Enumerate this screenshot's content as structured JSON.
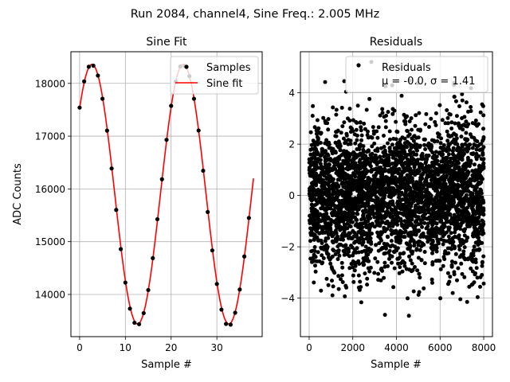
{
  "figure": {
    "suptitle": "Run 2084, channel4, Sine Freq.: 2.005 MHz"
  },
  "chart_data": [
    {
      "type": "line",
      "title": "Sine Fit",
      "xlabel": "Sample #",
      "ylabel": "ADC Counts",
      "xlim": [
        -1.9,
        39.9
      ],
      "ylim": [
        13200,
        18600
      ],
      "xticks": [
        0,
        10,
        20,
        30
      ],
      "yticks": [
        14000,
        15000,
        16000,
        17000,
        18000
      ],
      "grid": true,
      "legend_placement": "upper right",
      "series": [
        {
          "name": "Samples",
          "kind": "scatter",
          "color": "#000000",
          "x": [
            0,
            1,
            2,
            3,
            4,
            5,
            6,
            7,
            8,
            9,
            10,
            11,
            12,
            13,
            14,
            15,
            16,
            17,
            18,
            19,
            20,
            21,
            22,
            23,
            24,
            25,
            26,
            27,
            28,
            29,
            30,
            31,
            32,
            33,
            34,
            35,
            36,
            37
          ],
          "y": [
            17541,
            18038,
            18315,
            18336,
            18148,
            17708,
            17105,
            16387,
            15602,
            14859,
            14225,
            13731,
            13463,
            13437,
            13646,
            14083,
            14688,
            15426,
            16183,
            16930,
            17574,
            18031,
            18320,
            18330,
            18137,
            17709,
            17108,
            16345,
            15562,
            14834,
            14198,
            13712,
            13441,
            13428,
            13653,
            14094,
            14720,
            15450
          ]
        },
        {
          "name": "Sine fit",
          "kind": "line",
          "color": "#ff0000",
          "model": {
            "offset": 15900,
            "amplitude": 2460,
            "period_samples": 19.95,
            "peak_sample": 2.7
          },
          "x_range": [
            0,
            38
          ]
        }
      ]
    },
    {
      "type": "scatter",
      "title": "Residuals",
      "xlabel": "Sample #",
      "ylabel": "",
      "xlim": [
        -400,
        8400
      ],
      "ylim": [
        -5.5,
        5.6
      ],
      "xticks": [
        0,
        2000,
        4000,
        6000,
        8000
      ],
      "yticks": [
        -4,
        -2,
        0,
        2,
        4
      ],
      "grid": true,
      "legend_placement": "upper right",
      "stats": {
        "mu": -0.0,
        "sigma": 1.41,
        "n_points": 8000
      },
      "series": [
        {
          "name": "Residuals",
          "label_line2": "μ = -0.0, σ = 1.41",
          "color": "#000000"
        }
      ]
    }
  ]
}
